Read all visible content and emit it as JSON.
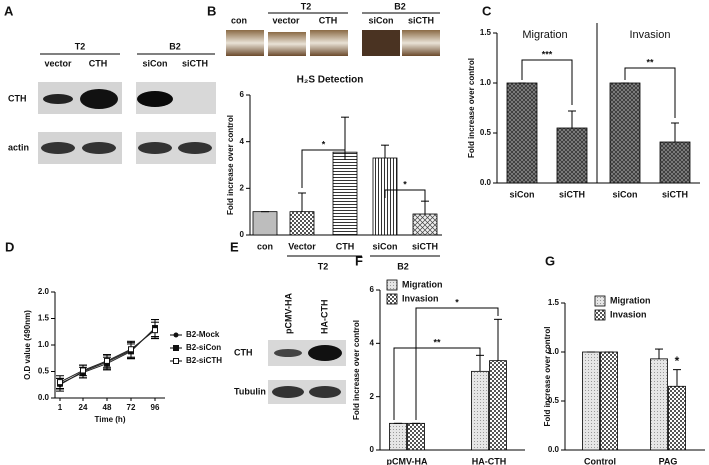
{
  "blots": {
    "A": {
      "panel": "A",
      "groups": [
        "T2",
        "B2"
      ],
      "lanes": [
        "vector",
        "CTH",
        "siCon",
        "siCTH"
      ],
      "rows": [
        "CTH",
        "actin"
      ]
    },
    "E": {
      "panel": "E",
      "lanes": [
        "pCMV-HA",
        "HA-CTH"
      ],
      "rows": [
        "CTH",
        "Tubulin"
      ]
    }
  },
  "chart_data": [
    {
      "type": "bar",
      "panel": "B",
      "title": "H₂S Detection",
      "ylabel": "Fold increase over control",
      "image_labels": [
        "con",
        "vector",
        "CTH",
        "siCon",
        "siCTH"
      ],
      "image_group_labels": [
        "T2",
        "B2"
      ],
      "categories": [
        "con",
        "Vector",
        "CTH",
        "siCon",
        "siCTH"
      ],
      "values": [
        1,
        1,
        3.55,
        3.3,
        0.9
      ],
      "errors": [
        0,
        0.8,
        1.5,
        0.55,
        0.55
      ],
      "group_labels": [
        "T2",
        "B2"
      ],
      "annotations": [
        "*",
        "*"
      ],
      "ylim": [
        0,
        6
      ],
      "yticks": [
        0,
        2,
        4,
        6
      ]
    },
    {
      "type": "bar",
      "panel": "C",
      "ylabel": "Fold increase over control",
      "section_labels": [
        "Migration",
        "Invasion"
      ],
      "categories": [
        "siCon",
        "siCTH",
        "siCon",
        "siCTH"
      ],
      "values": [
        1,
        0.55,
        1,
        0.41
      ],
      "errors": [
        0,
        0.17,
        0,
        0.19
      ],
      "annotations": [
        "***",
        "**"
      ],
      "ylim": [
        0,
        1.5
      ],
      "yticks": [
        {
          "value": 0,
          "label": "0.0"
        },
        0.5,
        {
          "value": 1,
          "label": "1.0"
        },
        1.5
      ]
    },
    {
      "type": "line",
      "panel": "D",
      "xlabel": "Time (h)",
      "ylabel": "O.D value (490nm)",
      "x": [
        1,
        24,
        48,
        72,
        96
      ],
      "series": [
        {
          "name": "B2-Mock",
          "values": [
            0.25,
            0.5,
            0.68,
            0.9,
            1.3
          ],
          "errors": [
            0.12,
            0.12,
            0.13,
            0.15,
            0.18
          ]
        },
        {
          "name": "B2-siCon",
          "values": [
            0.27,
            0.48,
            0.65,
            0.88,
            1.32
          ],
          "errors": [
            0.1,
            0.1,
            0.12,
            0.14,
            0.16
          ]
        },
        {
          "name": "B2-siCTH",
          "values": [
            0.3,
            0.52,
            0.7,
            0.92,
            1.28
          ],
          "errors": [
            0.12,
            0.1,
            0.12,
            0.15,
            0.15
          ]
        }
      ],
      "xlim": [
        -4,
        106
      ],
      "xticks": [
        1,
        24,
        48,
        72,
        96
      ],
      "ylim": [
        0,
        2
      ],
      "yticks": [
        {
          "value": 0,
          "label": "0.0"
        },
        0.5,
        {
          "value": 1,
          "label": "1.0"
        },
        1.5,
        {
          "value": 2,
          "label": "2.0"
        }
      ]
    },
    {
      "type": "bar",
      "panel": "F",
      "ylabel": "Fold increase over control",
      "categories": [
        "pCMV-HA",
        "HA-CTH"
      ],
      "series": [
        {
          "name": "Migration",
          "values": [
            1,
            2.95
          ],
          "errors": [
            0,
            0.6
          ]
        },
        {
          "name": "Invasion",
          "values": [
            1,
            3.35
          ],
          "errors": [
            0,
            1.55
          ]
        }
      ],
      "annotations": [
        "**",
        "*"
      ],
      "ylim": [
        0,
        6
      ],
      "yticks": [
        0,
        2,
        4,
        6
      ]
    },
    {
      "type": "bar",
      "panel": "G",
      "ylabel": "Fold increase over control",
      "categories": [
        "Control",
        "PAG"
      ],
      "series": [
        {
          "name": "Migration",
          "values": [
            1,
            0.93
          ],
          "errors": [
            0,
            0.1
          ]
        },
        {
          "name": "Invasion",
          "values": [
            1,
            0.65
          ],
          "errors": [
            0,
            0.17
          ]
        }
      ],
      "annotations": [
        "*"
      ],
      "ylim": [
        0,
        1.5
      ],
      "yticks": [
        {
          "value": 0,
          "label": "0.0"
        },
        0.5,
        {
          "value": 1,
          "label": "1.0"
        },
        1.5
      ]
    }
  ]
}
